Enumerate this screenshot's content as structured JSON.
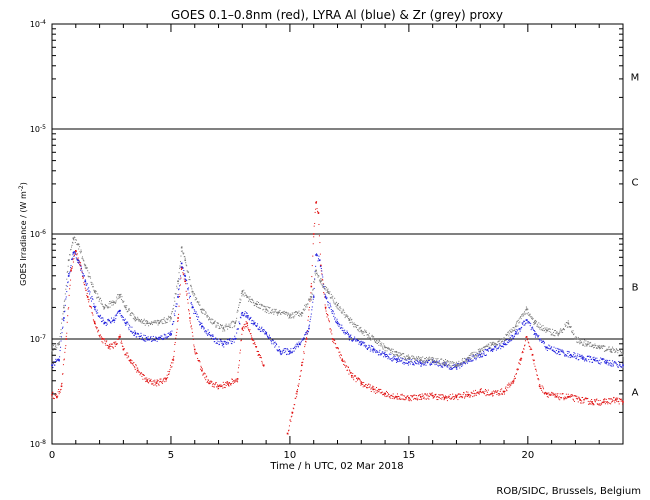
{
  "chart_data": {
    "type": "scatter",
    "title": "GOES 0.1–0.8nm (red), LYRA Al (blue) & Zr (grey) proxy",
    "xlabel": "Time / h UTC, 02 Mar 2018",
    "ylabel_prefix": "GOES Irradiance / (W m",
    "ylabel_exponent": "-2",
    "ylabel_suffix": ")",
    "credit": "ROB/SIDC, Brussels, Belgium",
    "xlim": [
      0,
      24
    ],
    "ylim_log10": [
      -8,
      -4
    ],
    "y_scale": "log",
    "x_ticks": [
      0,
      5,
      10,
      15,
      20
    ],
    "y_ticks": [
      {
        "value": -8,
        "base": "10",
        "exponent": "-8"
      },
      {
        "value": -7,
        "base": "10",
        "exponent": "-7"
      },
      {
        "value": -6,
        "base": "10",
        "exponent": "-6"
      },
      {
        "value": -5,
        "base": "10",
        "exponent": "-5"
      },
      {
        "value": -4,
        "base": "10",
        "exponent": "-4"
      }
    ],
    "flare_class_lines": [
      -7,
      -6,
      -5
    ],
    "flare_classes": [
      {
        "label": "A",
        "y_log10": -7.5
      },
      {
        "label": "B",
        "y_log10": -6.5
      },
      {
        "label": "C",
        "y_log10": -5.5
      },
      {
        "label": "M",
        "y_log10": -4.5
      }
    ],
    "series": [
      {
        "name": "GOES 0.1-0.8nm",
        "color": "#e01010",
        "points": [
          [
            0.0,
            -7.53
          ],
          [
            0.2,
            -7.55
          ],
          [
            0.4,
            -7.45
          ],
          [
            0.6,
            -7.0
          ],
          [
            0.8,
            -6.35
          ],
          [
            1.0,
            -6.16
          ],
          [
            1.2,
            -6.3
          ],
          [
            1.5,
            -6.6
          ],
          [
            1.8,
            -6.85
          ],
          [
            2.1,
            -7.0
          ],
          [
            2.4,
            -7.07
          ],
          [
            2.7,
            -7.05
          ],
          [
            2.85,
            -6.98
          ],
          [
            3.0,
            -7.1
          ],
          [
            3.3,
            -7.2
          ],
          [
            3.6,
            -7.3
          ],
          [
            4.0,
            -7.4
          ],
          [
            4.4,
            -7.42
          ],
          [
            4.8,
            -7.38
          ],
          [
            5.1,
            -7.2
          ],
          [
            5.3,
            -6.8
          ],
          [
            5.45,
            -6.32
          ],
          [
            5.6,
            -6.45
          ],
          [
            5.8,
            -6.8
          ],
          [
            6.0,
            -7.1
          ],
          [
            6.3,
            -7.3
          ],
          [
            6.6,
            -7.42
          ],
          [
            7.0,
            -7.45
          ],
          [
            7.4,
            -7.43
          ],
          [
            7.8,
            -7.38
          ],
          [
            8.0,
            -6.9
          ],
          [
            8.2,
            -6.85
          ],
          [
            8.4,
            -7.0
          ],
          [
            8.7,
            -7.15
          ],
          [
            8.9,
            -7.25
          ],
          [
            9.9,
            -7.9
          ],
          [
            10.1,
            -7.7
          ],
          [
            10.3,
            -7.5
          ],
          [
            10.5,
            -7.25
          ],
          [
            10.7,
            -7.0
          ],
          [
            10.9,
            -6.5
          ],
          [
            11.0,
            -6.0
          ],
          [
            11.1,
            -5.7
          ],
          [
            11.2,
            -5.8
          ],
          [
            11.3,
            -6.3
          ],
          [
            11.5,
            -6.7
          ],
          [
            11.8,
            -7.0
          ],
          [
            12.2,
            -7.2
          ],
          [
            12.6,
            -7.35
          ],
          [
            13.0,
            -7.42
          ],
          [
            13.5,
            -7.48
          ],
          [
            14.0,
            -7.52
          ],
          [
            14.5,
            -7.55
          ],
          [
            15.0,
            -7.56
          ],
          [
            15.5,
            -7.55
          ],
          [
            16.0,
            -7.54
          ],
          [
            16.5,
            -7.56
          ],
          [
            17.0,
            -7.55
          ],
          [
            17.5,
            -7.53
          ],
          [
            18.0,
            -7.5
          ],
          [
            18.5,
            -7.52
          ],
          [
            19.0,
            -7.5
          ],
          [
            19.4,
            -7.4
          ],
          [
            19.7,
            -7.2
          ],
          [
            19.95,
            -6.98
          ],
          [
            20.2,
            -7.15
          ],
          [
            20.5,
            -7.45
          ],
          [
            20.8,
            -7.52
          ],
          [
            21.2,
            -7.55
          ],
          [
            21.7,
            -7.55
          ],
          [
            22.2,
            -7.58
          ],
          [
            22.7,
            -7.6
          ],
          [
            23.2,
            -7.6
          ],
          [
            23.7,
            -7.58
          ],
          [
            24.0,
            -7.6
          ]
        ]
      },
      {
        "name": "LYRA Al proxy",
        "color": "#1a1adc",
        "points": [
          [
            0.0,
            -7.25
          ],
          [
            0.3,
            -7.2
          ],
          [
            0.5,
            -6.8
          ],
          [
            0.7,
            -6.4
          ],
          [
            0.9,
            -6.18
          ],
          [
            1.1,
            -6.25
          ],
          [
            1.4,
            -6.45
          ],
          [
            1.8,
            -6.7
          ],
          [
            2.2,
            -6.85
          ],
          [
            2.6,
            -6.82
          ],
          [
            2.85,
            -6.73
          ],
          [
            3.1,
            -6.85
          ],
          [
            3.5,
            -6.95
          ],
          [
            4.0,
            -7.0
          ],
          [
            4.5,
            -7.0
          ],
          [
            5.0,
            -6.95
          ],
          [
            5.3,
            -6.6
          ],
          [
            5.45,
            -6.28
          ],
          [
            5.6,
            -6.4
          ],
          [
            5.9,
            -6.7
          ],
          [
            6.3,
            -6.88
          ],
          [
            6.8,
            -7.0
          ],
          [
            7.2,
            -7.05
          ],
          [
            7.7,
            -7.0
          ],
          [
            8.0,
            -6.75
          ],
          [
            8.2,
            -6.78
          ],
          [
            8.5,
            -6.85
          ],
          [
            9.0,
            -6.95
          ],
          [
            9.6,
            -7.12
          ],
          [
            10.0,
            -7.12
          ],
          [
            10.4,
            -7.05
          ],
          [
            10.8,
            -6.9
          ],
          [
            11.0,
            -6.6
          ],
          [
            11.1,
            -6.2
          ],
          [
            11.25,
            -6.25
          ],
          [
            11.5,
            -6.6
          ],
          [
            12.0,
            -6.85
          ],
          [
            12.5,
            -6.98
          ],
          [
            13.0,
            -7.05
          ],
          [
            13.5,
            -7.1
          ],
          [
            14.0,
            -7.15
          ],
          [
            14.5,
            -7.2
          ],
          [
            15.0,
            -7.22
          ],
          [
            15.5,
            -7.23
          ],
          [
            16.0,
            -7.22
          ],
          [
            16.5,
            -7.25
          ],
          [
            17.0,
            -7.27
          ],
          [
            17.5,
            -7.2
          ],
          [
            18.0,
            -7.15
          ],
          [
            18.5,
            -7.1
          ],
          [
            19.0,
            -7.05
          ],
          [
            19.5,
            -6.95
          ],
          [
            19.95,
            -6.82
          ],
          [
            20.3,
            -6.95
          ],
          [
            20.8,
            -7.08
          ],
          [
            21.3,
            -7.12
          ],
          [
            21.8,
            -7.15
          ],
          [
            22.3,
            -7.18
          ],
          [
            22.8,
            -7.2
          ],
          [
            23.3,
            -7.22
          ],
          [
            24.0,
            -7.25
          ]
        ]
      },
      {
        "name": "LYRA Zr proxy",
        "color": "#7a7a7a",
        "points": [
          [
            0.0,
            -7.1
          ],
          [
            0.3,
            -7.05
          ],
          [
            0.5,
            -6.7
          ],
          [
            0.7,
            -6.25
          ],
          [
            0.9,
            -6.04
          ],
          [
            1.1,
            -6.1
          ],
          [
            1.4,
            -6.3
          ],
          [
            1.8,
            -6.55
          ],
          [
            2.2,
            -6.7
          ],
          [
            2.6,
            -6.65
          ],
          [
            2.85,
            -6.58
          ],
          [
            3.1,
            -6.7
          ],
          [
            3.5,
            -6.8
          ],
          [
            4.0,
            -6.85
          ],
          [
            4.5,
            -6.85
          ],
          [
            5.0,
            -6.8
          ],
          [
            5.3,
            -6.45
          ],
          [
            5.45,
            -6.13
          ],
          [
            5.6,
            -6.25
          ],
          [
            5.9,
            -6.55
          ],
          [
            6.3,
            -6.72
          ],
          [
            6.8,
            -6.85
          ],
          [
            7.2,
            -6.9
          ],
          [
            7.7,
            -6.85
          ],
          [
            8.0,
            -6.55
          ],
          [
            8.2,
            -6.6
          ],
          [
            8.6,
            -6.67
          ],
          [
            9.0,
            -6.72
          ],
          [
            9.5,
            -6.75
          ],
          [
            10.0,
            -6.78
          ],
          [
            10.5,
            -6.75
          ],
          [
            10.9,
            -6.6
          ],
          [
            11.1,
            -6.35
          ],
          [
            11.3,
            -6.45
          ],
          [
            11.6,
            -6.55
          ],
          [
            12.0,
            -6.68
          ],
          [
            12.5,
            -6.82
          ],
          [
            13.0,
            -6.92
          ],
          [
            13.5,
            -7.0
          ],
          [
            14.0,
            -7.08
          ],
          [
            14.5,
            -7.15
          ],
          [
            15.0,
            -7.18
          ],
          [
            15.5,
            -7.2
          ],
          [
            16.0,
            -7.2
          ],
          [
            16.5,
            -7.22
          ],
          [
            17.0,
            -7.25
          ],
          [
            17.5,
            -7.18
          ],
          [
            18.0,
            -7.12
          ],
          [
            18.5,
            -7.05
          ],
          [
            19.0,
            -7.0
          ],
          [
            19.5,
            -6.88
          ],
          [
            19.95,
            -6.72
          ],
          [
            20.3,
            -6.85
          ],
          [
            20.8,
            -6.92
          ],
          [
            21.3,
            -6.95
          ],
          [
            21.7,
            -6.85
          ],
          [
            22.0,
            -7.0
          ],
          [
            22.5,
            -7.05
          ],
          [
            23.0,
            -7.08
          ],
          [
            23.5,
            -7.1
          ],
          [
            24.0,
            -7.15
          ]
        ]
      }
    ]
  }
}
